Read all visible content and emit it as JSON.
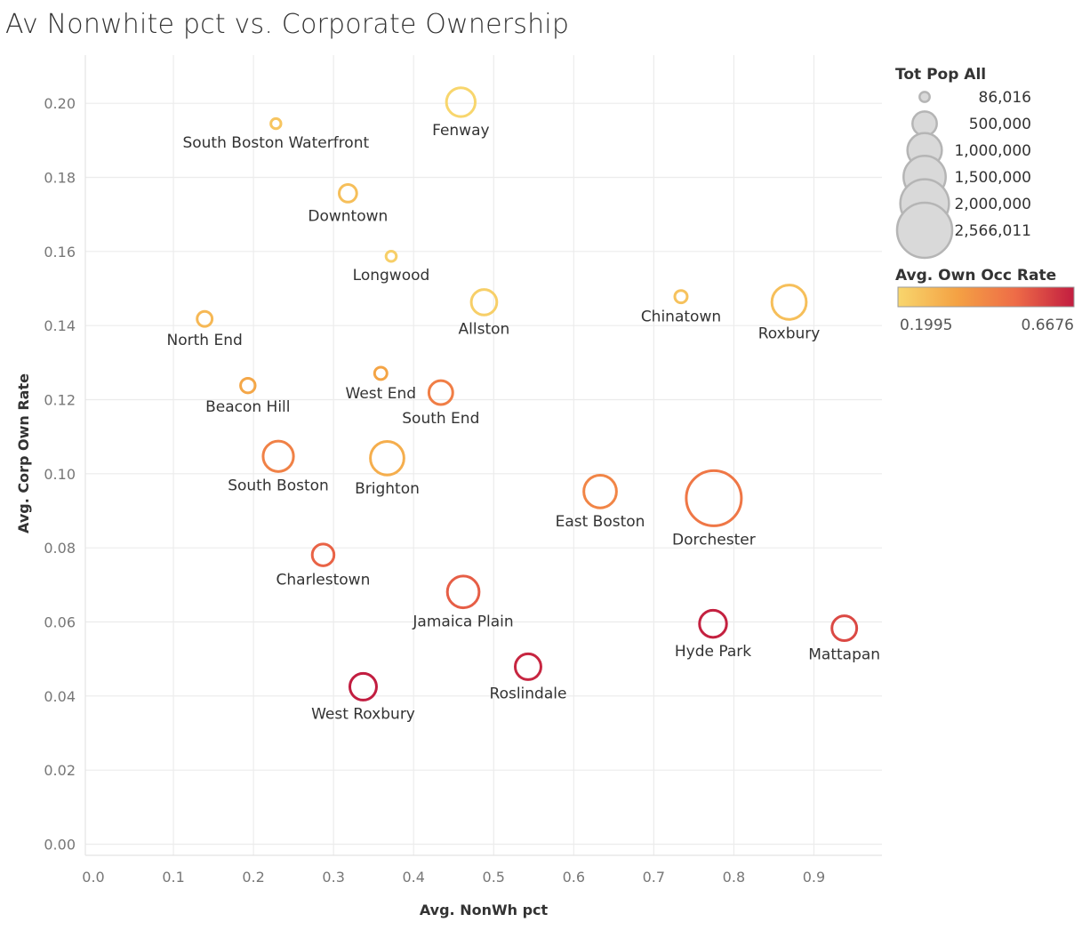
{
  "title": "Av Nonwhite pct vs. Corporate Ownership",
  "chart_data": {
    "type": "scatter",
    "title": "Av Nonwhite pct vs. Corporate Ownership",
    "xlabel": "Avg. NonWh pct",
    "ylabel": "Avg. Corp Own Rate",
    "xlim": [
      -0.01,
      0.985
    ],
    "ylim": [
      -0.003,
      0.213
    ],
    "xticks": [
      0.0,
      0.1,
      0.2,
      0.3,
      0.4,
      0.5,
      0.6,
      0.7,
      0.8,
      0.9
    ],
    "xtick_labels": [
      "0.0",
      "0.1",
      "0.2",
      "0.3",
      "0.4",
      "0.5",
      "0.6",
      "0.7",
      "0.8",
      "0.9"
    ],
    "yticks": [
      0.0,
      0.02,
      0.04,
      0.06,
      0.08,
      0.1,
      0.12,
      0.14,
      0.16,
      0.18,
      0.2
    ],
    "ytick_labels": [
      "0.00",
      "0.02",
      "0.04",
      "0.06",
      "0.08",
      "0.10",
      "0.12",
      "0.14",
      "0.16",
      "0.18",
      "0.20"
    ],
    "grid": true,
    "size_legend": {
      "title": "Tot Pop All",
      "entries": [
        {
          "label": "86,016",
          "value": 86016
        },
        {
          "label": "500,000",
          "value": 500000
        },
        {
          "label": "1,000,000",
          "value": 1000000
        },
        {
          "label": "1,500,000",
          "value": 1500000
        },
        {
          "label": "2,000,000",
          "value": 2000000
        },
        {
          "label": "2,566,011",
          "value": 2566011
        }
      ]
    },
    "color_legend": {
      "title": "Avg. Own Occ Rate",
      "min_label": "0.1995",
      "max_label": "0.6676",
      "min": 0.1995,
      "max": 0.6676,
      "colors": [
        "#f8d66d",
        "#f4a244",
        "#ee6c47",
        "#c21d40"
      ]
    },
    "points": [
      {
        "name": "South Boston Waterfront",
        "x": 0.228,
        "y": 0.1945,
        "pop": 86016,
        "own": 0.25
      },
      {
        "name": "Fenway",
        "x": 0.459,
        "y": 0.2003,
        "pop": 700000,
        "own": 0.1995
      },
      {
        "name": "Downtown",
        "x": 0.318,
        "y": 0.1757,
        "pop": 260000,
        "own": 0.27
      },
      {
        "name": "Longwood",
        "x": 0.372,
        "y": 0.1587,
        "pop": 90000,
        "own": 0.22
      },
      {
        "name": "Allston",
        "x": 0.488,
        "y": 0.1463,
        "pop": 550000,
        "own": 0.22
      },
      {
        "name": "Chinatown",
        "x": 0.734,
        "y": 0.1478,
        "pop": 130000,
        "own": 0.26
      },
      {
        "name": "Roxbury",
        "x": 0.869,
        "y": 0.1463,
        "pop": 1000000,
        "own": 0.27
      },
      {
        "name": "North End",
        "x": 0.139,
        "y": 0.1418,
        "pop": 190000,
        "own": 0.29
      },
      {
        "name": "West End",
        "x": 0.359,
        "y": 0.1271,
        "pop": 130000,
        "own": 0.35
      },
      {
        "name": "Beacon Hill",
        "x": 0.193,
        "y": 0.1238,
        "pop": 180000,
        "own": 0.34
      },
      {
        "name": "South End",
        "x": 0.434,
        "y": 0.1219,
        "pop": 480000,
        "own": 0.46
      },
      {
        "name": "South Boston",
        "x": 0.231,
        "y": 0.1047,
        "pop": 780000,
        "own": 0.45
      },
      {
        "name": "Brighton",
        "x": 0.367,
        "y": 0.1042,
        "pop": 950000,
        "own": 0.32
      },
      {
        "name": "East Boston",
        "x": 0.633,
        "y": 0.0952,
        "pop": 900000,
        "own": 0.44
      },
      {
        "name": "Dorchester",
        "x": 0.775,
        "y": 0.0934,
        "pop": 2566011,
        "own": 0.48
      },
      {
        "name": "Charlestown",
        "x": 0.287,
        "y": 0.0781,
        "pop": 400000,
        "own": 0.53
      },
      {
        "name": "Jamaica Plain",
        "x": 0.462,
        "y": 0.0681,
        "pop": 850000,
        "own": 0.54
      },
      {
        "name": "Hyde Park",
        "x": 0.774,
        "y": 0.0595,
        "pop": 620000,
        "own": 0.66
      },
      {
        "name": "Mattapan",
        "x": 0.938,
        "y": 0.0583,
        "pop": 520000,
        "own": 0.58
      },
      {
        "name": "Roslindale",
        "x": 0.543,
        "y": 0.0479,
        "pop": 560000,
        "own": 0.65
      },
      {
        "name": "West Roxbury",
        "x": 0.337,
        "y": 0.0425,
        "pop": 600000,
        "own": 0.6676
      }
    ]
  }
}
